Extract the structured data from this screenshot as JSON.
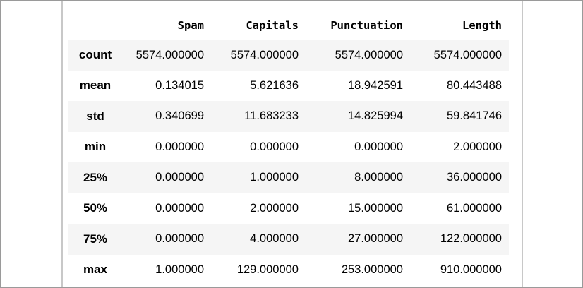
{
  "table": {
    "columns": [
      "Spam",
      "Capitals",
      "Punctuation",
      "Length"
    ],
    "rows": [
      {
        "label": "count",
        "values": [
          "5574.000000",
          "5574.000000",
          "5574.000000",
          "5574.000000"
        ]
      },
      {
        "label": "mean",
        "values": [
          "0.134015",
          "5.621636",
          "18.942591",
          "80.443488"
        ]
      },
      {
        "label": "std",
        "values": [
          "0.340699",
          "11.683233",
          "14.825994",
          "59.841746"
        ]
      },
      {
        "label": "min",
        "values": [
          "0.000000",
          "0.000000",
          "0.000000",
          "2.000000"
        ]
      },
      {
        "label": "25%",
        "values": [
          "0.000000",
          "1.000000",
          "8.000000",
          "36.000000"
        ]
      },
      {
        "label": "50%",
        "values": [
          "0.000000",
          "2.000000",
          "15.000000",
          "61.000000"
        ]
      },
      {
        "label": "75%",
        "values": [
          "0.000000",
          "4.000000",
          "27.000000",
          "122.000000"
        ]
      },
      {
        "label": "max",
        "values": [
          "1.000000",
          "129.000000",
          "253.000000",
          "910.000000"
        ]
      }
    ]
  }
}
